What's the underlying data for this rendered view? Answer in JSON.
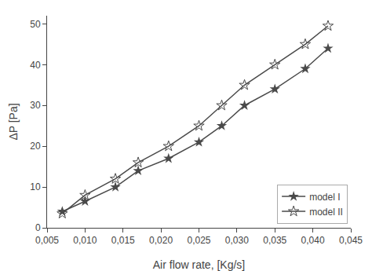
{
  "chart_data": {
    "type": "line",
    "x": [
      0.007,
      0.01,
      0.014,
      0.017,
      0.021,
      0.025,
      0.028,
      0.031,
      0.035,
      0.039,
      0.042
    ],
    "series": [
      {
        "name": "model I",
        "color": "#4a4a4a",
        "marker": "star",
        "values": [
          4.0,
          6.5,
          10.0,
          14.0,
          17.0,
          21.0,
          25.0,
          30.0,
          34.0,
          39.0,
          44.0
        ]
      },
      {
        "name": "model II",
        "color": "#4a4a4a",
        "marker": "star-open",
        "values": [
          3.5,
          8.0,
          12.0,
          16.0,
          20.0,
          25.0,
          30.0,
          35.0,
          40.0,
          45.0,
          49.5
        ]
      }
    ],
    "xlabel": "Air flow rate, [Kg/s]",
    "ylabel": "ΔP [Pa]",
    "xlim": [
      0.005,
      0.045
    ],
    "ylim": [
      0,
      52
    ],
    "xticks": [
      {
        "value": 0.005,
        "label": "0,005"
      },
      {
        "value": 0.01,
        "label": "0,010"
      },
      {
        "value": 0.015,
        "label": "0,015"
      },
      {
        "value": 0.02,
        "label": "0,020"
      },
      {
        "value": 0.025,
        "label": "0,025"
      },
      {
        "value": 0.03,
        "label": "0,030"
      },
      {
        "value": 0.035,
        "label": "0,035"
      },
      {
        "value": 0.04,
        "label": "0,040"
      },
      {
        "value": 0.045,
        "label": "0,045"
      }
    ],
    "yticks": [
      0,
      10,
      20,
      30,
      40,
      50
    ],
    "grid": false,
    "legend": "lower right"
  }
}
